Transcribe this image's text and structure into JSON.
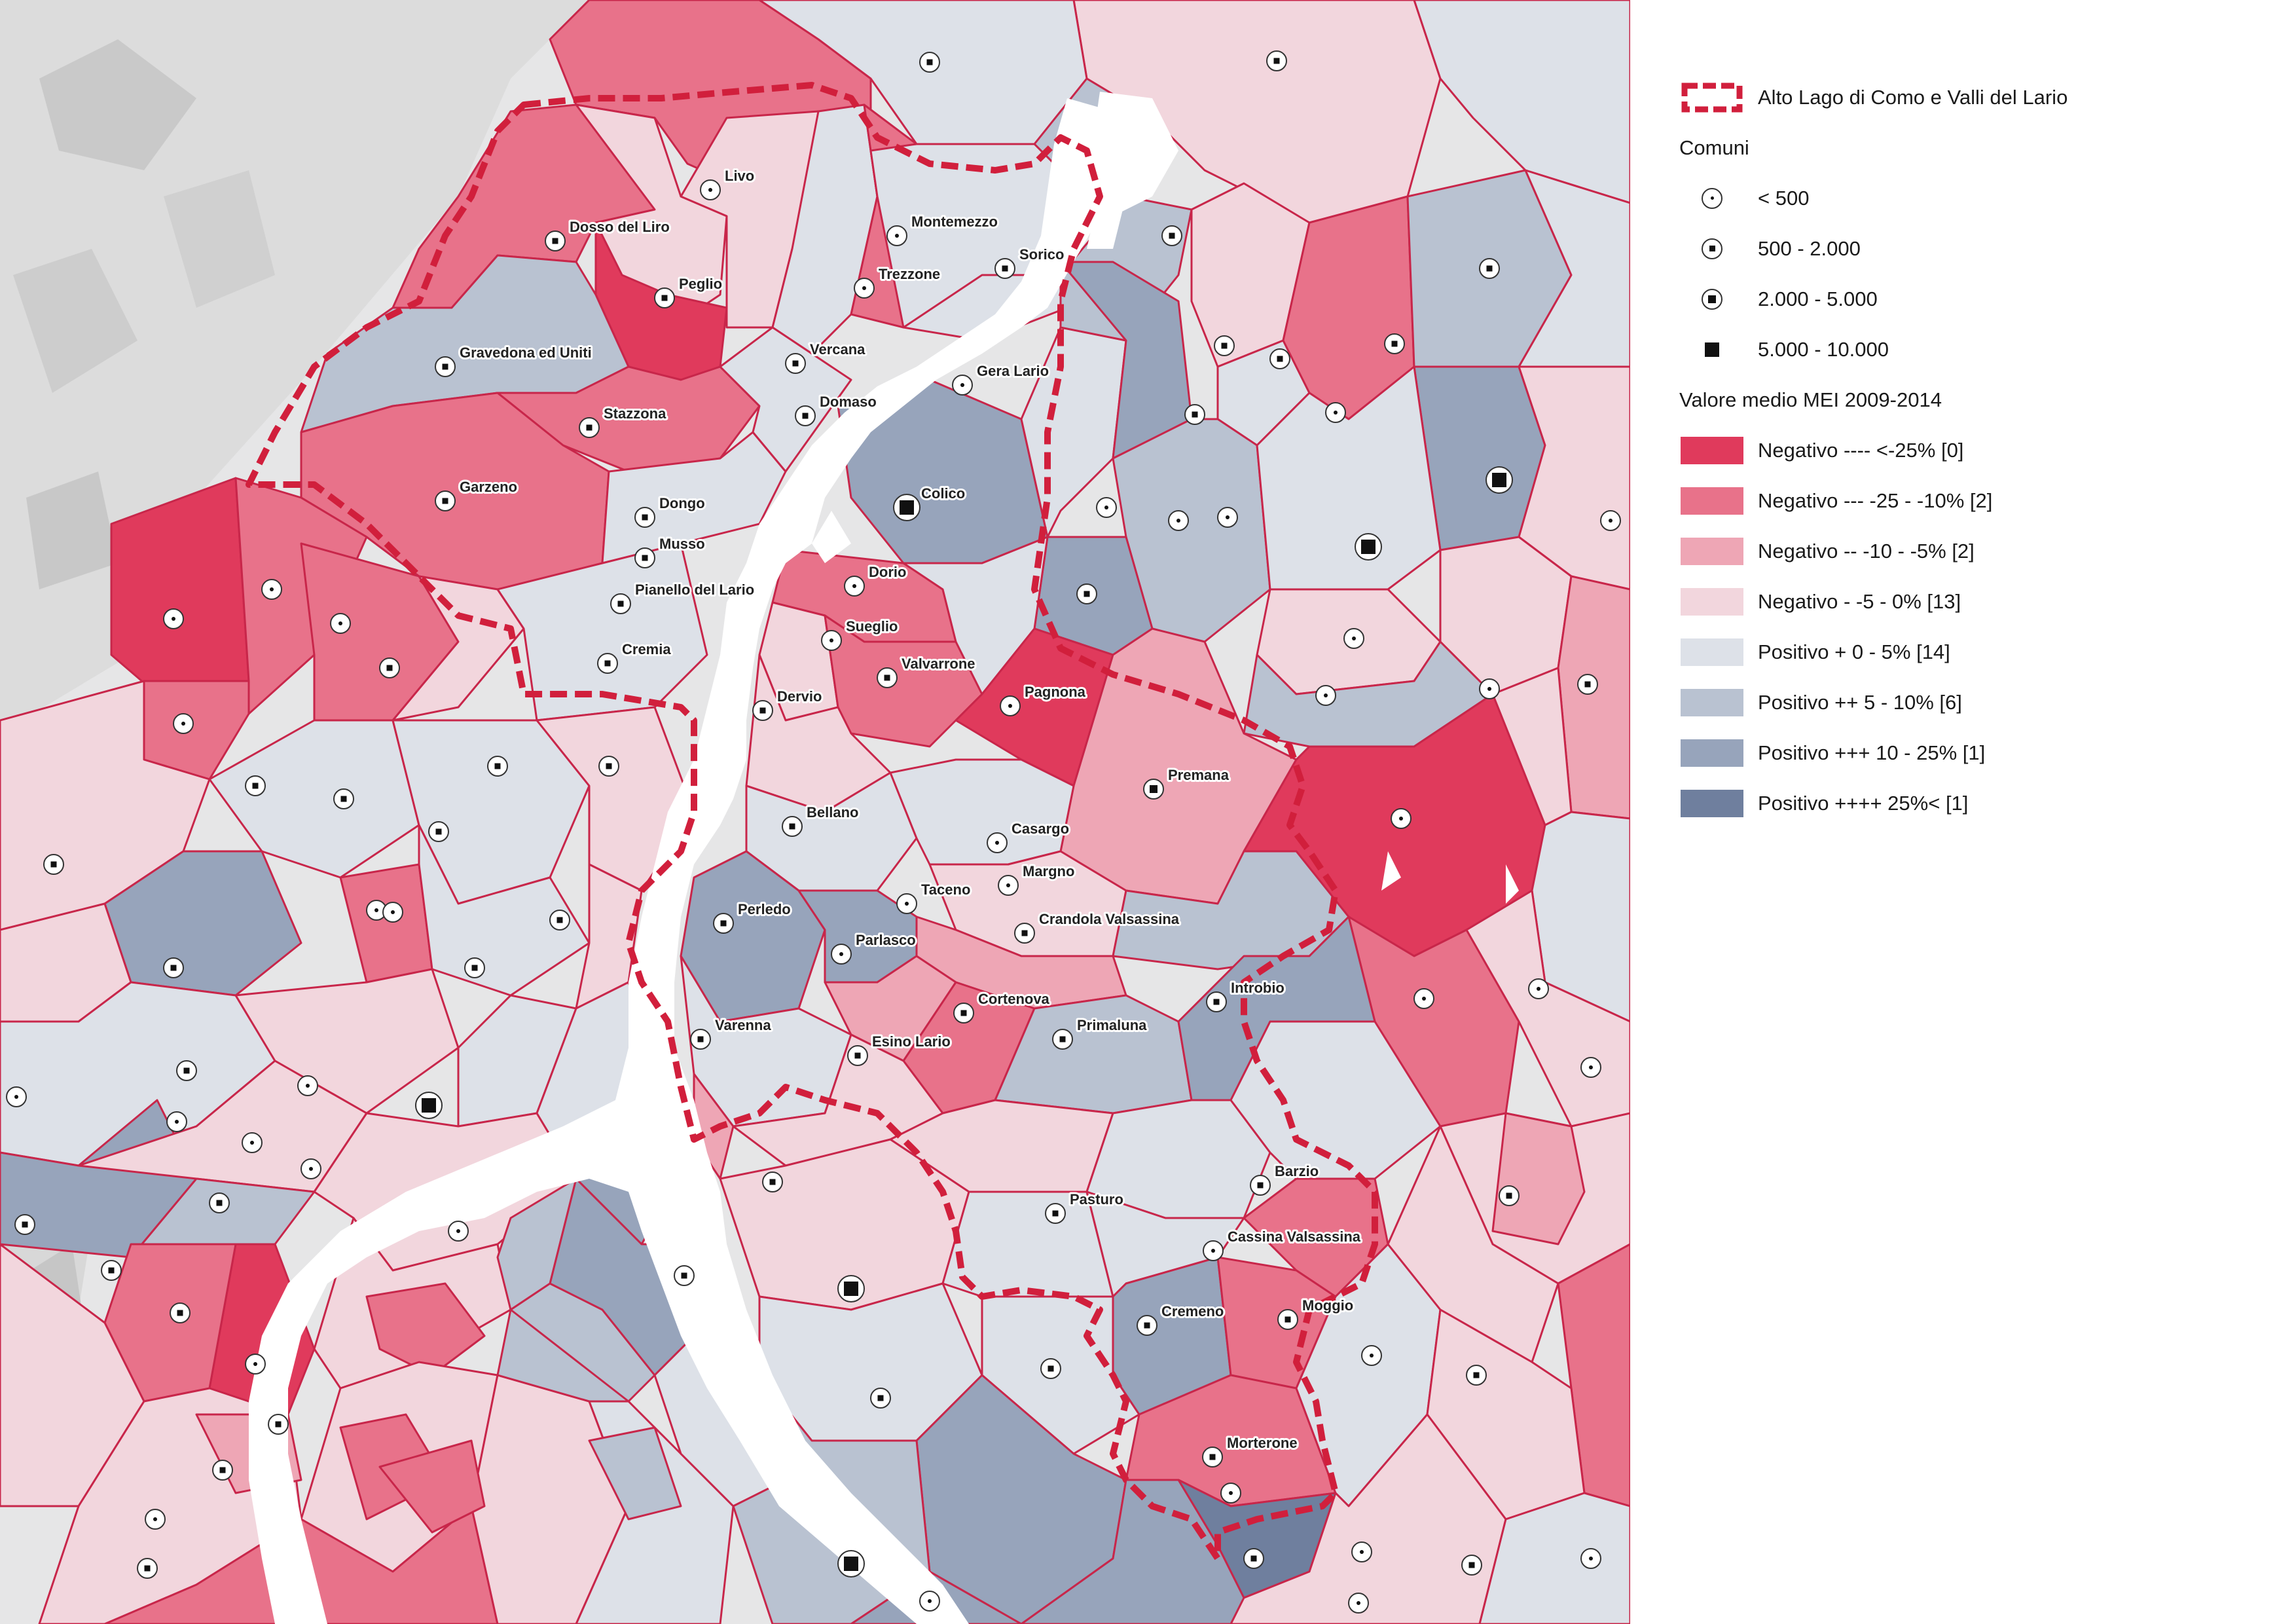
{
  "legend": {
    "boundary_label": "Alto Lago di Como e Valli del Lario",
    "boundary_color": "#d11f3c",
    "comuni_title": "Comuni",
    "comuni_classes": [
      {
        "label": "< 500",
        "icon": "dot-small-icon"
      },
      {
        "label": "500 - 2.000",
        "icon": "dot-medium-icon"
      },
      {
        "label": "2.000 - 5.000",
        "icon": "dot-large-icon"
      },
      {
        "label": "5.000 - 10.000",
        "icon": "square-icon"
      }
    ],
    "mei_title": "Valore medio MEI 2009-2014",
    "mei_classes": [
      {
        "label": "Negativo ---- <-25% [0]",
        "color": "#e03a5c"
      },
      {
        "label": "Negativo --- -25 - -10% [2]",
        "color": "#e8728a"
      },
      {
        "label": "Negativo -- -10 - -5% [2]",
        "color": "#eea6b5"
      },
      {
        "label": "Negativo -  -5 - 0% [13]",
        "color": "#f2d6dd"
      },
      {
        "label": "Positivo + 0 - 5% [14]",
        "color": "#dde1e8"
      },
      {
        "label": "Positivo ++ 5 - 10% [6]",
        "color": "#b9c2d1"
      },
      {
        "label": "Positivo +++ 10 - 25% [1]",
        "color": "#97a4bb"
      },
      {
        "label": "Positivo ++++ 25%< [1]",
        "color": "#6f7f9e"
      }
    ]
  },
  "map": {
    "comuni_labels": [
      "Livo",
      "Dosso del Liro",
      "Peglio",
      "Montemezzo",
      "Sorico",
      "Trezzone",
      "Gravedona ed Uniti",
      "Vercana",
      "Gera Lario",
      "Domaso",
      "Stazzona",
      "Garzeno",
      "Colico",
      "Dongo",
      "Musso",
      "Pianello del Lario",
      "Cremia",
      "Dorio",
      "Sueglio",
      "Valvarrone",
      "Dervio",
      "Pagnona",
      "Premana",
      "Bellano",
      "Casargo",
      "Margno",
      "Taceno",
      "Perledo",
      "Crandola Valsassina",
      "Parlasco",
      "Introbio",
      "Cortenova",
      "Varenna",
      "Primaluna",
      "Esino Lario",
      "Barzio",
      "Pasturo",
      "Cassina Valsassina",
      "Moggio",
      "Cremeno",
      "Morterone"
    ]
  }
}
